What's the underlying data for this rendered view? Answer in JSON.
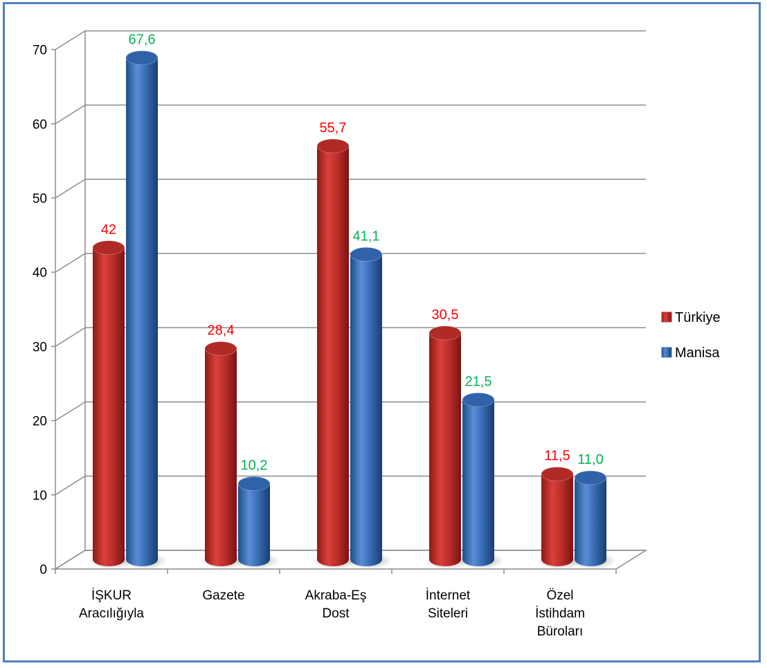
{
  "chart_data": {
    "type": "bar",
    "categories": [
      [
        "İŞKUR",
        "Aracılığıyla"
      ],
      [
        "Gazete"
      ],
      [
        "Akraba-Eş",
        "Dost"
      ],
      [
        "İnternet",
        "Siteleri"
      ],
      [
        "Özel",
        "İstihdam",
        "Büroları"
      ]
    ],
    "series": [
      {
        "name": "Türkiye",
        "values": [
          42,
          28.4,
          55.7,
          30.5,
          11.5
        ],
        "labels": [
          "42",
          "28,4",
          "55,7",
          "30,5",
          "11,5"
        ],
        "color": "#C0302C",
        "label_color": "#FF0000"
      },
      {
        "name": "Manisa",
        "values": [
          67.6,
          10.2,
          41.1,
          21.5,
          11.0
        ],
        "labels": [
          "67,6",
          "10,2",
          "41,1",
          "21,5",
          "11,0"
        ],
        "color": "#3A6FB8",
        "label_color": "#00B050"
      }
    ],
    "y_ticks": [
      "0",
      "10",
      "20",
      "30",
      "40",
      "50",
      "60",
      "70"
    ],
    "ylim": [
      0,
      70
    ],
    "grid": true,
    "legend": "right"
  }
}
